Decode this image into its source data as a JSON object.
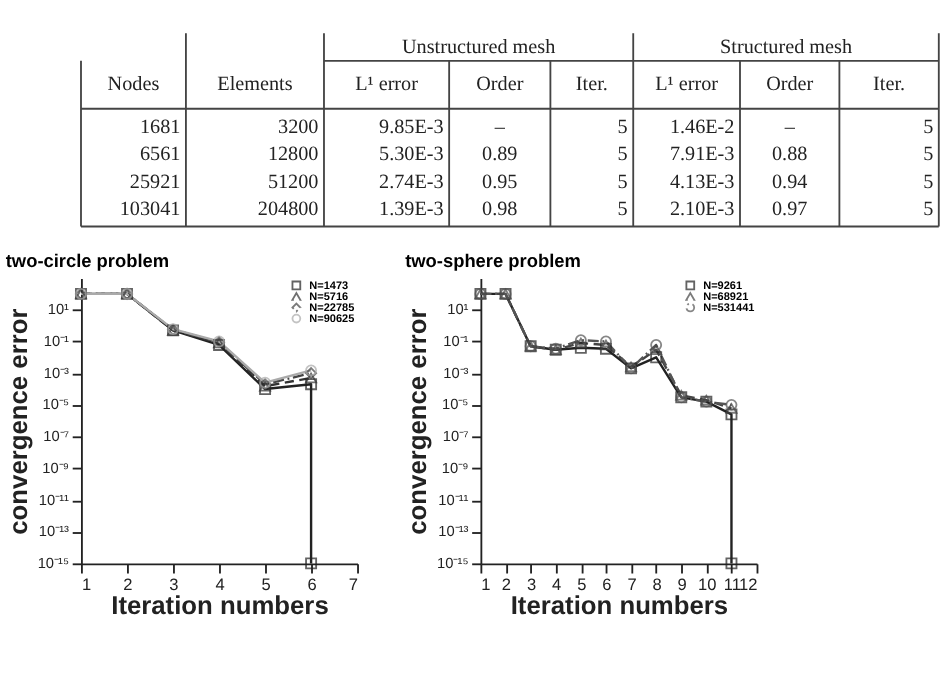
{
  "chart_data": [
    {
      "type": "other",
      "annotations": [
        "Unstructured mesh",
        "Structured mesh",
        "Nodes",
        "Elements",
        "L¹ error",
        "Order",
        "Iter.",
        "L¹ error",
        "Order",
        "Iter.",
        "1681",
        "3200",
        "9.85E-3",
        "–",
        "5",
        "1.46E-2",
        "–",
        "5",
        "6561",
        "12800",
        "5.30E-3",
        "0.89",
        "5",
        "7.91E-3",
        "0.88",
        "5",
        "25921",
        "51200",
        "2.74E-3",
        "0.95",
        "5",
        "4.13E-3",
        "0.94",
        "5",
        "103041",
        "204800",
        "1.39E-3",
        "0.98",
        "5",
        "2.10E-3",
        "0.97",
        "5"
      ]
    },
    {
      "type": "line",
      "title": "two-circle problem",
      "xlabel": "Iteration numbers",
      "ylabel": "convergence error",
      "log": true,
      "grid": false,
      "legend": "top right",
      "xlim": [
        1,
        7
      ],
      "xticks": [
        1,
        2,
        3,
        4,
        5,
        6,
        7
      ],
      "ylim": [
        1e-15,
        1000
      ],
      "yticks": [
        {
          "value": 10,
          "label": "10¹"
        },
        {
          "value": 0.1,
          "label": "10⁻¹"
        },
        {
          "value": 0.001,
          "label": "10⁻³"
        },
        {
          "value": 1e-05,
          "label": "10⁻⁵"
        },
        {
          "value": 1e-07,
          "label": "10⁻⁷"
        },
        {
          "value": 1e-09,
          "label": "10⁻⁹"
        },
        {
          "value": 1e-11,
          "label": "10⁻¹¹"
        },
        {
          "value": 1e-13,
          "label": "10⁻¹³"
        },
        {
          "value": 1e-15,
          "label": "10⁻¹⁵"
        }
      ],
      "series": [
        {
          "name": "N=1473",
          "color": "#222222",
          "marker": "square",
          "line_style": "solid",
          "x": [
            1,
            2,
            3,
            4,
            5,
            6,
            6
          ],
          "values": [
            100,
            100,
            0.5,
            0.06,
            0.0001,
            0.0002,
            1e-15
          ]
        },
        {
          "name": "N=5716",
          "color": "#333333",
          "marker": "triangle",
          "line_style": "dashed",
          "x": [
            1,
            2,
            3,
            4,
            5,
            6
          ],
          "values": [
            100,
            100,
            0.5,
            0.08,
            0.00015,
            0.0005
          ]
        },
        {
          "name": "N=22785",
          "color": "#444444",
          "marker": "diamond",
          "line_style": "dotted",
          "x": [
            1,
            2,
            3,
            4,
            5,
            6
          ],
          "values": [
            100,
            100,
            0.55,
            0.09,
            0.0002,
            0.001
          ]
        },
        {
          "name": "N=90625",
          "color": "#aaaaaa",
          "marker": "circle",
          "line_style": "solid",
          "x": [
            1,
            2,
            3,
            4,
            5,
            6
          ],
          "values": [
            100,
            100,
            0.6,
            0.1,
            0.00025,
            0.0015
          ]
        }
      ]
    },
    {
      "type": "line",
      "title": "two-sphere problem",
      "xlabel": "Iteration numbers",
      "ylabel": "convergence error",
      "log": true,
      "grid": false,
      "legend": "top right",
      "xlim": [
        1,
        12
      ],
      "xticks": [
        1,
        2,
        3,
        4,
        5,
        6,
        7,
        8,
        9,
        10,
        11,
        12
      ],
      "ylim": [
        1e-15,
        1000
      ],
      "yticks": [
        {
          "value": 10,
          "label": "10¹"
        },
        {
          "value": 0.1,
          "label": "10⁻¹"
        },
        {
          "value": 0.001,
          "label": "10⁻³"
        },
        {
          "value": 1e-05,
          "label": "10⁻⁵"
        },
        {
          "value": 1e-07,
          "label": "10⁻⁷"
        },
        {
          "value": 1e-09,
          "label": "10⁻⁹"
        },
        {
          "value": 1e-11,
          "label": "10⁻¹¹"
        },
        {
          "value": 1e-13,
          "label": "10⁻¹³"
        },
        {
          "value": 1e-15,
          "label": "10⁻¹⁵"
        }
      ],
      "series": [
        {
          "name": "N=9261",
          "color": "#222222",
          "marker": "square",
          "line_style": "solid",
          "x": [
            1,
            2,
            3,
            4,
            5,
            6,
            7,
            8,
            9,
            10,
            11,
            11
          ],
          "values": [
            100,
            100,
            0.05,
            0.03,
            0.04,
            0.035,
            0.002,
            0.01,
            3e-05,
            1.6e-05,
            2.5e-06,
            1e-15
          ]
        },
        {
          "name": "N=68921",
          "color": "#444444",
          "marker": "triangle",
          "line_style": "dashed",
          "x": [
            1,
            2,
            3,
            4,
            5,
            6,
            7,
            8,
            9,
            10,
            11
          ],
          "values": [
            100,
            100,
            0.05,
            0.03,
            0.08,
            0.06,
            0.0025,
            0.03,
            4e-05,
            2e-05,
            6e-06
          ]
        },
        {
          "name": "N=531441",
          "color": "#555555",
          "marker": "circle",
          "line_style": "dotted",
          "x": [
            1,
            2,
            3,
            4,
            5,
            6,
            7,
            8,
            9,
            10,
            11
          ],
          "values": [
            100,
            100,
            0.05,
            0.035,
            0.12,
            0.1,
            0.002,
            0.06,
            3e-05,
            1.6e-05,
            1e-05
          ]
        }
      ]
    }
  ]
}
